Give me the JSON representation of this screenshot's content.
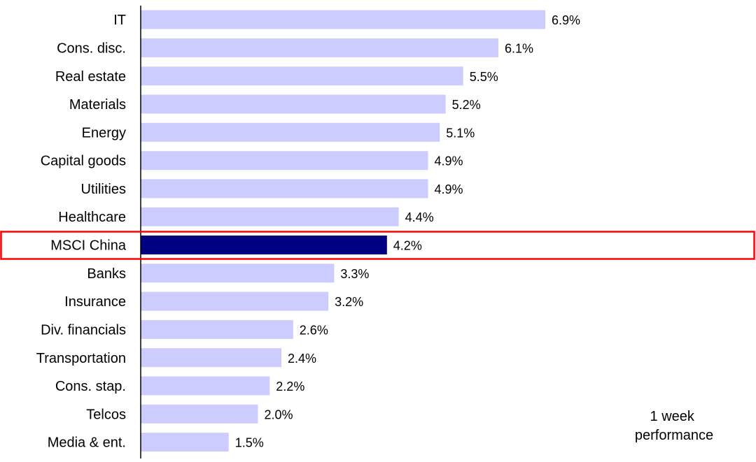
{
  "chart_data": {
    "type": "bar",
    "orientation": "horizontal",
    "categories": [
      "IT",
      "Cons. disc.",
      "Real estate",
      "Materials",
      "Energy",
      "Capital goods",
      "Utilities",
      "Healthcare",
      "MSCI China",
      "Banks",
      "Insurance",
      "Div. financials",
      "Transportation",
      "Cons. stap.",
      "Telcos",
      "Media & ent."
    ],
    "values": [
      6.9,
      6.1,
      5.5,
      5.2,
      5.1,
      4.9,
      4.9,
      4.4,
      4.2,
      3.3,
      3.2,
      2.6,
      2.4,
      2.2,
      2.0,
      1.5
    ],
    "value_labels": [
      "6.9%",
      "6.1%",
      "5.5%",
      "5.2%",
      "5.1%",
      "4.9%",
      "4.9%",
      "4.4%",
      "4.2%",
      "3.3%",
      "3.2%",
      "2.6%",
      "2.4%",
      "2.2%",
      "2.0%",
      "1.5%"
    ],
    "highlight_category": "MSCI China",
    "annotation": [
      "1 week",
      "performance"
    ],
    "xlim": [
      0,
      7.6
    ],
    "grid": false,
    "colors": {
      "bar": "#ccccff",
      "highlight_bar": "#000080",
      "highlight_box": "#ff0000",
      "axis": "#000000",
      "text": "#000000"
    }
  }
}
